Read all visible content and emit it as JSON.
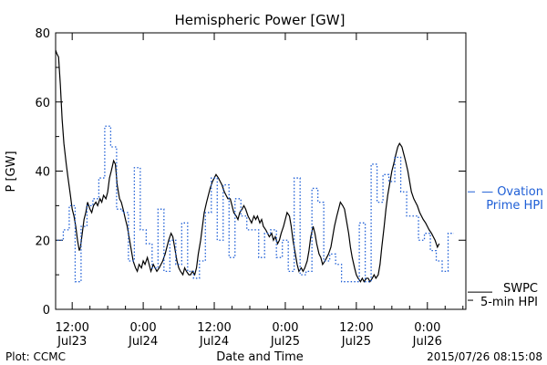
{
  "chart_data": {
    "type": "line",
    "title": "Hemispheric Power [GW]",
    "ylabel": "P [GW]",
    "xlabel": "Date and Time",
    "ylim": [
      0,
      80
    ],
    "xlim_hours": [
      -14.8,
      54.5
    ],
    "yticks": [
      "0",
      "20",
      "40",
      "60",
      "80"
    ],
    "xticks": [
      {
        "t": -12,
        "time": "12:00",
        "day": "Jul23"
      },
      {
        "t": 0,
        "time": "0:00",
        "day": "Jul24"
      },
      {
        "t": 12,
        "time": "12:00",
        "day": "Jul24"
      },
      {
        "t": 24,
        "time": "0:00",
        "day": "Jul25"
      },
      {
        "t": 36,
        "time": "12:00",
        "day": "Jul25"
      },
      {
        "t": 48,
        "time": "0:00",
        "day": "Jul26"
      }
    ],
    "footer_left": "Plot: CCMC",
    "footer_right": "2015/07/26 08:15:08",
    "grid": false,
    "series": [
      {
        "name": "SWPC 5-min HPI",
        "color": "#000000",
        "style": "solid",
        "label_line1": "SWPC",
        "label_line2": "5-min HPI",
        "label_level": 5,
        "points": [
          [
            -14.8,
            75
          ],
          [
            -14.6,
            74
          ],
          [
            -14.3,
            73
          ],
          [
            -14.0,
            65
          ],
          [
            -13.7,
            55
          ],
          [
            -13.4,
            48
          ],
          [
            -13.0,
            42
          ],
          [
            -12.7,
            38
          ],
          [
            -12.3,
            33
          ],
          [
            -12.0,
            29
          ],
          [
            -11.7,
            27
          ],
          [
            -11.4,
            24
          ],
          [
            -11.1,
            20
          ],
          [
            -10.8,
            17
          ],
          [
            -10.6,
            18
          ],
          [
            -10.3,
            22
          ],
          [
            -10.0,
            26
          ],
          [
            -9.7,
            28
          ],
          [
            -9.4,
            31
          ],
          [
            -9.0,
            29
          ],
          [
            -8.7,
            28
          ],
          [
            -8.4,
            30
          ],
          [
            -8.0,
            31
          ],
          [
            -7.7,
            30
          ],
          [
            -7.3,
            32
          ],
          [
            -7.0,
            31
          ],
          [
            -6.7,
            33
          ],
          [
            -6.3,
            32
          ],
          [
            -6.0,
            34
          ],
          [
            -5.7,
            38
          ],
          [
            -5.4,
            40
          ],
          [
            -5.0,
            43
          ],
          [
            -4.7,
            42
          ],
          [
            -4.4,
            36
          ],
          [
            -4.0,
            32
          ],
          [
            -3.7,
            31
          ],
          [
            -3.4,
            29
          ],
          [
            -3.0,
            26
          ],
          [
            -2.7,
            24
          ],
          [
            -2.3,
            20
          ],
          [
            -2.0,
            17
          ],
          [
            -1.7,
            14
          ],
          [
            -1.3,
            12
          ],
          [
            -1.0,
            11
          ],
          [
            -0.7,
            13
          ],
          [
            -0.3,
            12
          ],
          [
            0.0,
            14
          ],
          [
            0.3,
            13
          ],
          [
            0.7,
            15
          ],
          [
            1.0,
            13
          ],
          [
            1.3,
            11
          ],
          [
            1.7,
            13
          ],
          [
            2.0,
            12
          ],
          [
            2.3,
            11
          ],
          [
            2.7,
            12
          ],
          [
            3.0,
            13
          ],
          [
            3.3,
            14
          ],
          [
            3.7,
            16
          ],
          [
            4.0,
            18
          ],
          [
            4.3,
            20
          ],
          [
            4.7,
            22
          ],
          [
            5.0,
            21
          ],
          [
            5.3,
            18
          ],
          [
            5.7,
            14
          ],
          [
            6.0,
            12
          ],
          [
            6.3,
            11
          ],
          [
            6.7,
            10
          ],
          [
            7.0,
            12
          ],
          [
            7.3,
            11
          ],
          [
            7.7,
            10
          ],
          [
            8.0,
            10
          ],
          [
            8.3,
            11
          ],
          [
            8.7,
            10
          ],
          [
            9.0,
            12
          ],
          [
            9.3,
            16
          ],
          [
            9.7,
            20
          ],
          [
            10.0,
            24
          ],
          [
            10.3,
            28
          ],
          [
            10.7,
            31
          ],
          [
            11.0,
            33
          ],
          [
            11.3,
            35
          ],
          [
            11.7,
            37
          ],
          [
            12.0,
            38
          ],
          [
            12.3,
            39
          ],
          [
            12.7,
            38
          ],
          [
            13.0,
            37
          ],
          [
            13.3,
            36
          ],
          [
            13.7,
            34
          ],
          [
            14.0,
            33
          ],
          [
            14.3,
            32
          ],
          [
            14.7,
            32
          ],
          [
            15.0,
            30
          ],
          [
            15.3,
            28
          ],
          [
            15.7,
            27
          ],
          [
            16.0,
            26
          ],
          [
            16.3,
            28
          ],
          [
            16.7,
            29
          ],
          [
            17.0,
            30
          ],
          [
            17.3,
            29
          ],
          [
            17.7,
            27
          ],
          [
            18.0,
            26
          ],
          [
            18.3,
            25
          ],
          [
            18.7,
            27
          ],
          [
            19.0,
            26
          ],
          [
            19.3,
            27
          ],
          [
            19.7,
            25
          ],
          [
            20.0,
            26
          ],
          [
            20.3,
            24
          ],
          [
            20.7,
            23
          ],
          [
            21.0,
            22
          ],
          [
            21.3,
            21
          ],
          [
            21.7,
            22
          ],
          [
            22.0,
            20
          ],
          [
            22.3,
            21
          ],
          [
            22.7,
            19
          ],
          [
            23.0,
            20
          ],
          [
            23.3,
            22
          ],
          [
            23.7,
            24
          ],
          [
            24.0,
            26
          ],
          [
            24.3,
            28
          ],
          [
            24.7,
            27
          ],
          [
            25.0,
            24
          ],
          [
            25.3,
            20
          ],
          [
            25.7,
            16
          ],
          [
            26.0,
            13
          ],
          [
            26.3,
            11
          ],
          [
            26.7,
            12
          ],
          [
            27.0,
            11
          ],
          [
            27.3,
            12
          ],
          [
            27.7,
            14
          ],
          [
            28.0,
            17
          ],
          [
            28.3,
            21
          ],
          [
            28.7,
            24
          ],
          [
            29.0,
            22
          ],
          [
            29.3,
            19
          ],
          [
            29.7,
            16
          ],
          [
            30.0,
            15
          ],
          [
            30.3,
            13
          ],
          [
            30.7,
            14
          ],
          [
            31.0,
            15
          ],
          [
            31.3,
            16
          ],
          [
            31.7,
            18
          ],
          [
            32.0,
            21
          ],
          [
            32.3,
            24
          ],
          [
            32.7,
            27
          ],
          [
            33.0,
            29
          ],
          [
            33.3,
            31
          ],
          [
            33.7,
            30
          ],
          [
            34.0,
            29
          ],
          [
            34.3,
            26
          ],
          [
            34.7,
            22
          ],
          [
            35.0,
            18
          ],
          [
            35.3,
            15
          ],
          [
            35.7,
            12
          ],
          [
            36.0,
            10
          ],
          [
            36.3,
            9
          ],
          [
            36.7,
            8
          ],
          [
            37.0,
            9
          ],
          [
            37.3,
            8
          ],
          [
            37.7,
            9
          ],
          [
            38.0,
            9
          ],
          [
            38.3,
            8
          ],
          [
            38.7,
            9
          ],
          [
            39.0,
            10
          ],
          [
            39.3,
            9
          ],
          [
            39.7,
            10
          ],
          [
            40.0,
            13
          ],
          [
            40.3,
            18
          ],
          [
            40.7,
            24
          ],
          [
            41.0,
            29
          ],
          [
            41.3,
            33
          ],
          [
            41.7,
            37
          ],
          [
            42.0,
            40
          ],
          [
            42.3,
            42
          ],
          [
            42.7,
            45
          ],
          [
            43.0,
            47
          ],
          [
            43.3,
            48
          ],
          [
            43.7,
            47
          ],
          [
            44.0,
            45
          ],
          [
            44.3,
            43
          ],
          [
            44.7,
            40
          ],
          [
            45.0,
            37
          ],
          [
            45.3,
            34
          ],
          [
            45.7,
            32
          ],
          [
            46.0,
            31
          ],
          [
            46.3,
            30
          ],
          [
            46.7,
            28
          ],
          [
            47.0,
            27
          ],
          [
            47.3,
            26
          ],
          [
            47.7,
            25
          ],
          [
            48.0,
            24
          ],
          [
            48.3,
            23
          ],
          [
            48.7,
            22
          ],
          [
            49.0,
            21
          ],
          [
            49.3,
            20
          ],
          [
            49.7,
            18
          ],
          [
            50.0,
            19
          ]
        ]
      },
      {
        "name": "Ovation Prime HPI",
        "color": "#1f5fd6",
        "style": "dotted-step",
        "label_line1": "— Ovation",
        "label_line2": "Prime HPI",
        "label_level": 34,
        "points": [
          [
            -14.5,
            20
          ],
          [
            -13.5,
            23
          ],
          [
            -12.5,
            30
          ],
          [
            -11.5,
            8
          ],
          [
            -10.5,
            24
          ],
          [
            -9.5,
            30
          ],
          [
            -8.5,
            32
          ],
          [
            -7.5,
            38
          ],
          [
            -6.5,
            53
          ],
          [
            -5.5,
            47
          ],
          [
            -4.5,
            29
          ],
          [
            -3.5,
            28
          ],
          [
            -2.5,
            14
          ],
          [
            -1.5,
            41
          ],
          [
            -0.5,
            23
          ],
          [
            0.5,
            19
          ],
          [
            1.5,
            12
          ],
          [
            2.5,
            29
          ],
          [
            3.5,
            11
          ],
          [
            4.5,
            20
          ],
          [
            5.5,
            13
          ],
          [
            6.5,
            25
          ],
          [
            7.5,
            11
          ],
          [
            8.5,
            9
          ],
          [
            9.5,
            14
          ],
          [
            10.5,
            28
          ],
          [
            11.5,
            38
          ],
          [
            12.5,
            20
          ],
          [
            13.5,
            36
          ],
          [
            14.5,
            15
          ],
          [
            15.5,
            32
          ],
          [
            16.5,
            27
          ],
          [
            17.5,
            23
          ],
          [
            18.5,
            23
          ],
          [
            19.5,
            15
          ],
          [
            20.5,
            22
          ],
          [
            21.5,
            23
          ],
          [
            22.5,
            15
          ],
          [
            23.5,
            20
          ],
          [
            24.5,
            11
          ],
          [
            25.5,
            38
          ],
          [
            26.5,
            10
          ],
          [
            27.5,
            11
          ],
          [
            28.5,
            35
          ],
          [
            29.5,
            31
          ],
          [
            30.5,
            14
          ],
          [
            31.5,
            16
          ],
          [
            32.5,
            13
          ],
          [
            33.5,
            8
          ],
          [
            34.5,
            8
          ],
          [
            35.5,
            8
          ],
          [
            36.5,
            25
          ],
          [
            37.5,
            8
          ],
          [
            38.5,
            42
          ],
          [
            39.5,
            31
          ],
          [
            40.5,
            39
          ],
          [
            41.5,
            37
          ],
          [
            42.5,
            44
          ],
          [
            43.5,
            34
          ],
          [
            44.5,
            27
          ],
          [
            45.5,
            27
          ],
          [
            46.5,
            20
          ],
          [
            47.5,
            22
          ],
          [
            48.5,
            17
          ],
          [
            49.5,
            14
          ],
          [
            50.5,
            11
          ],
          [
            51.5,
            22
          ]
        ]
      }
    ]
  }
}
